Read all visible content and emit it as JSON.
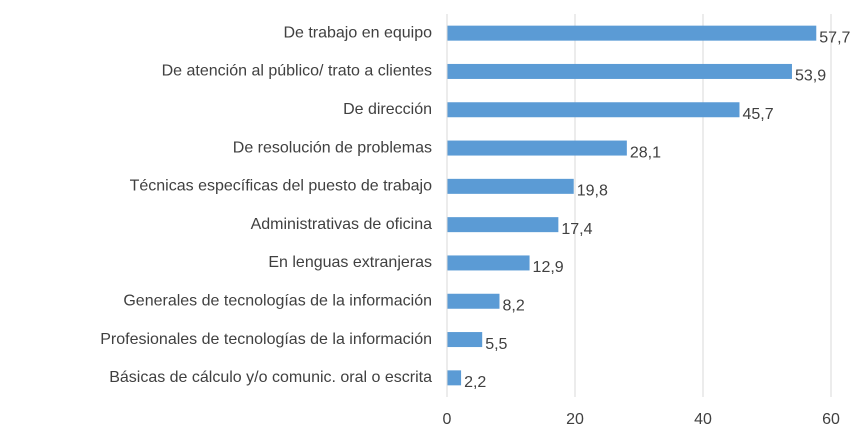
{
  "chart_data": {
    "type": "bar",
    "orientation": "horizontal",
    "categories": [
      "De trabajo en equipo",
      "De atención al público/ trato a clientes",
      "De dirección",
      "De resolución de problemas",
      "Técnicas específicas del puesto de trabajo",
      "Administrativas de oficina",
      "En lenguas extranjeras",
      "Generales de tecnologías de la información",
      "Profesionales de tecnologías de la información",
      "Básicas de cálculo y/o comunic. oral o escrita"
    ],
    "values": [
      57.7,
      53.9,
      45.7,
      28.1,
      19.8,
      17.4,
      12.9,
      8.2,
      5.5,
      2.2
    ],
    "value_labels": [
      "57,7",
      "53,9",
      "45,7",
      "28,1",
      "19,8",
      "17,4",
      "12,9",
      "8,2",
      "5,5",
      "2,2"
    ],
    "color": "#5b9bd5",
    "xlim": [
      0,
      60
    ],
    "xticks": [
      0,
      20,
      40,
      60
    ],
    "grid": true
  }
}
